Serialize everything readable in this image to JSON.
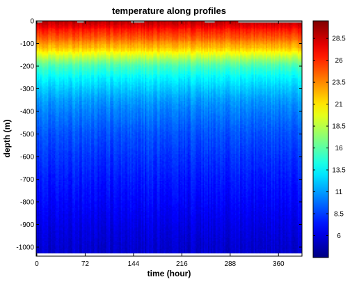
{
  "chart_data": {
    "type": "heatmap",
    "title": "temperature along profiles",
    "xlabel": "time (hour)",
    "ylabel": "depth (m)",
    "xlim": [
      -1,
      395
    ],
    "ylim": [
      -1040,
      0
    ],
    "x_ticks": [
      0,
      72,
      144,
      216,
      288,
      360
    ],
    "y_ticks": [
      0,
      -100,
      -200,
      -300,
      -400,
      -500,
      -600,
      -700,
      -800,
      -900,
      -1000
    ],
    "colorbar": {
      "colormap": "jet",
      "range": [
        3.5,
        30.5
      ],
      "ticks": [
        6,
        8.5,
        11,
        13.5,
        16,
        18.5,
        21,
        23.5,
        26,
        28.5
      ]
    },
    "missing_color": "#a0a0a0",
    "profile_max_depth": -1022,
    "temperature_profile": {
      "depth": [
        0,
        -20,
        -40,
        -60,
        -80,
        -100,
        -120,
        -150,
        -180,
        -200,
        -250,
        -300,
        -350,
        -400,
        -500,
        -600,
        -700,
        -800,
        -900,
        -1000
      ],
      "value": [
        29.0,
        28.0,
        26.5,
        25.5,
        24.5,
        23.0,
        22.0,
        19.5,
        17.0,
        15.5,
        13.5,
        12.2,
        11.0,
        10.2,
        9.0,
        8.2,
        7.5,
        6.9,
        6.2,
        5.6
      ]
    }
  }
}
